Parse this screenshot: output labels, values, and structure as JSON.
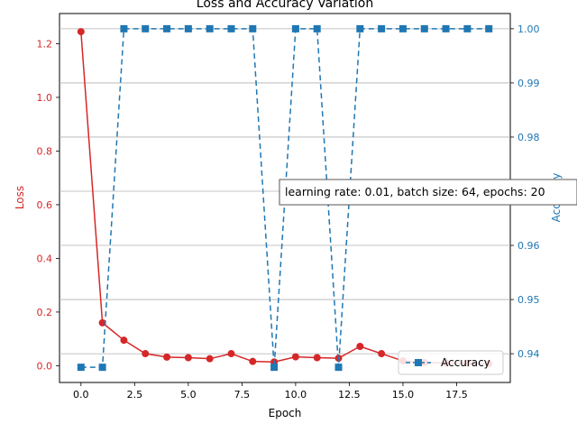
{
  "chart_data": {
    "type": "line",
    "title": "Loss and Accuracy Variation",
    "xlabel": "Epoch",
    "ylabel_left": "Loss",
    "ylabel_right": "Accuracy",
    "x": [
      0,
      1,
      2,
      3,
      4,
      5,
      6,
      7,
      8,
      9,
      10,
      11,
      12,
      13,
      14,
      15,
      16,
      17,
      18,
      19
    ],
    "xlim": [
      -1,
      20
    ],
    "ylim_left": [
      -0.0625,
      1.3125
    ],
    "ylim_right": [
      0.93469,
      1.00281
    ],
    "xticks": [
      0.0,
      2.5,
      5.0,
      7.5,
      10.0,
      12.5,
      15.0,
      17.5
    ],
    "xtick_labels": [
      "0.0",
      "2.5",
      "5.0",
      "7.5",
      "10.0",
      "12.5",
      "15.0",
      "17.5"
    ],
    "yticks_left": [
      0.0,
      0.2,
      0.4,
      0.6,
      0.8,
      1.0,
      1.2
    ],
    "ytick_labels_left": [
      "0.0",
      "0.2",
      "0.4",
      "0.6",
      "0.8",
      "1.0",
      "1.2"
    ],
    "yticks_right": [
      0.94,
      0.95,
      0.96,
      0.97,
      0.98,
      0.99,
      1.0
    ],
    "ytick_labels_right": [
      "0.94",
      "0.95",
      "0.96",
      "0.97",
      "0.98",
      "0.99",
      "1.00"
    ],
    "grid": "horizontal (right axis)",
    "series": [
      {
        "axis": "left",
        "color": "#d62728",
        "linestyle": "solid",
        "marker": "circle",
        "values": [
          1.245,
          0.16,
          0.095,
          0.045,
          0.032,
          0.03,
          0.026,
          0.045,
          0.016,
          0.014,
          0.033,
          0.03,
          0.028,
          0.072,
          0.045,
          0.018,
          0.012,
          0.01,
          0.009,
          0.008
        ]
      },
      {
        "name": "Accuracy",
        "axis": "right",
        "color": "#1f77b4",
        "linestyle": "dashed",
        "marker": "square",
        "values": [
          0.9375,
          0.9375,
          1.0,
          1.0,
          1.0,
          1.0,
          1.0,
          1.0,
          1.0,
          0.9375,
          1.0,
          1.0,
          0.9375,
          1.0,
          1.0,
          1.0,
          1.0,
          1.0,
          1.0,
          1.0
        ]
      }
    ],
    "annotation": "learning rate: 0.01, batch size: 64, epochs: 20",
    "legend": {
      "placement": "lower-right",
      "entries": [
        "Accuracy"
      ]
    }
  },
  "colors": {
    "loss": "#d62728",
    "accuracy": "#1f77b4",
    "grid": "#b0b0b0",
    "axes": "#000000"
  }
}
